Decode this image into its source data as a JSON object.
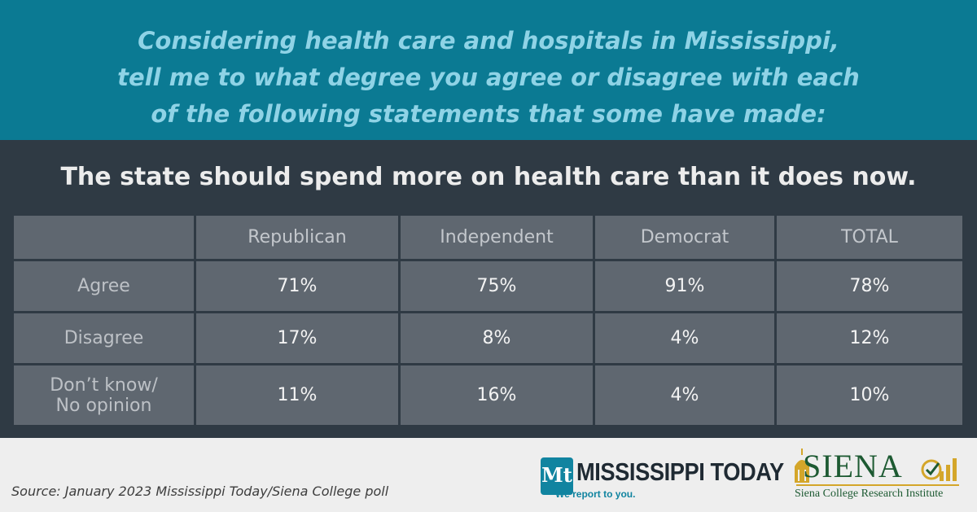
{
  "header": {
    "question_lines": [
      "Considering health care and hospitals in Mississippi,",
      "tell me to what degree you agree or disagree with each",
      "of the following statements that some have made:"
    ]
  },
  "statement": "The state should spend more on health care than it does now.",
  "chart_data": {
    "type": "table",
    "title": "The state should spend more on health care than it does now.",
    "columns": [
      "",
      "Republican",
      "Independent",
      "Democrat",
      "TOTAL"
    ],
    "rows": [
      {
        "label_lines": [
          "Agree"
        ],
        "values": [
          "71%",
          "75%",
          "91%",
          "78%"
        ]
      },
      {
        "label_lines": [
          "Disagree"
        ],
        "values": [
          "17%",
          "8%",
          "4%",
          "12%"
        ]
      },
      {
        "label_lines": [
          "Don’t know/",
          "No opinion"
        ],
        "values": [
          "11%",
          "16%",
          "4%",
          "10%"
        ]
      }
    ]
  },
  "footer": {
    "source": "Source: January 2023 Mississippi Today/Siena College poll",
    "mississippi_today": {
      "badge": "Mt",
      "name": "MISSISSIPPI TODAY",
      "tagline": "We report to you."
    },
    "siena": {
      "name": "SIENA",
      "subtitle": "Siena College Research Institute"
    }
  },
  "colors": {
    "header_bg": "#0b7a93",
    "question_text": "#8fd3e6",
    "body_bg": "#2f3a44",
    "cell_bg": "#5f6770",
    "footer_bg": "#eeeeee",
    "mt_blue": "#1184a0",
    "siena_green": "#1d5a32",
    "siena_gold": "#d4a62a"
  },
  "icons": {
    "siena_logo": "dome-icon",
    "siena_check": "checkmark-bar-chart-icon"
  }
}
